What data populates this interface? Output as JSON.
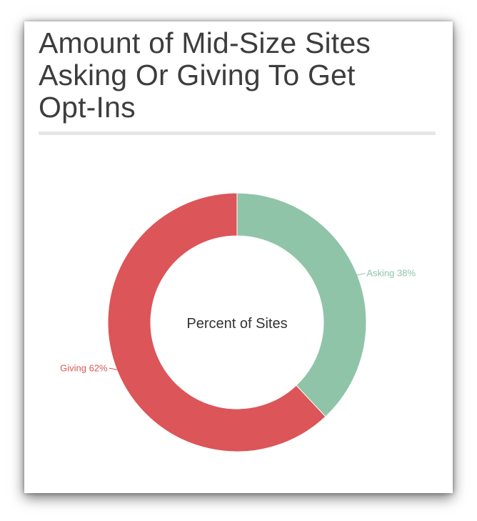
{
  "title": "Amount of Mid-Size Sites Asking Or Giving To Get Opt-Ins",
  "title_lines": [
    "Amount of Mid-Size Sites",
    "Asking Or Giving To Get",
    "Opt-Ins"
  ],
  "colors": {
    "asking": "#8fc4a9",
    "giving": "#dc5558",
    "title_text": "#3d3d3d",
    "rule": "#e6e6e6"
  },
  "chart_data": {
    "type": "pie",
    "variant": "donut",
    "center_label": "Percent of Sites",
    "slices": [
      {
        "label": "Asking",
        "value": 38,
        "display": "Asking 38%",
        "color": "#8fc4a9"
      },
      {
        "label": "Giving",
        "value": 62,
        "display": "Giving 62%",
        "color": "#dc5558"
      }
    ],
    "legend": "none",
    "start_angle": "12 o'clock, clockwise"
  }
}
